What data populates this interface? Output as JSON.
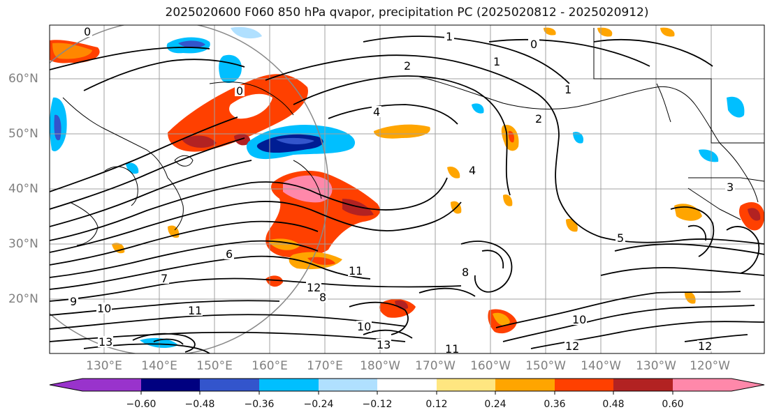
{
  "title": "2025020600 F060 850 hPa qvapor, precipitation PC (2025020812 - 2025020912)",
  "lat_labels": [
    "60°N",
    "50°N",
    "40°N",
    "30°N",
    "20°N"
  ],
  "lon_labels": [
    "130°E",
    "140°E",
    "150°E",
    "160°E",
    "170°E",
    "180°W",
    "170°W",
    "160°W",
    "150°W",
    "140°W",
    "130°W",
    "120°W"
  ],
  "colorbar": {
    "ticks": [
      "−0.60",
      "−0.48",
      "−0.36",
      "−0.24",
      "−0.12",
      "0.12",
      "0.24",
      "0.36",
      "0.48",
      "0.60"
    ],
    "colors": [
      "#9933cc",
      "#000080",
      "#3355cc",
      "#00bfff",
      "#b0e0ff",
      "#ffffff",
      "#ffe680",
      "#ffa500",
      "#ff4000",
      "#b22222",
      "#ff88aa",
      "#ff88aa"
    ]
  },
  "contour_labels": [
    "0",
    "1",
    "2",
    "3",
    "4",
    "5",
    "6",
    "7",
    "8",
    "9",
    "10",
    "11",
    "12",
    "13"
  ],
  "colors": {
    "grid": "#a0a0a0",
    "contour": "#000000",
    "coast": "#000000"
  }
}
